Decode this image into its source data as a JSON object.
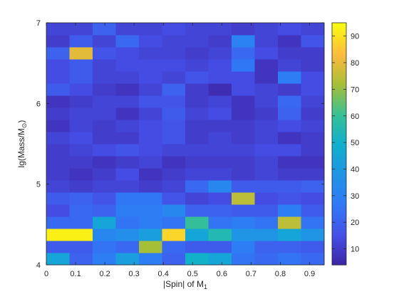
{
  "chart_data": {
    "type": "heatmap",
    "title": "",
    "xlabel": "|Spin| of M",
    "xlabel_sub": "1",
    "ylabel_prefix": "lg(Mass/M",
    "ylabel_sub": "⊙",
    "ylabel_suffix": ")",
    "xlim": [
      0,
      0.95
    ],
    "ylim": [
      4,
      7
    ],
    "x_ticks": [
      0,
      0.1,
      0.2,
      0.3,
      0.4,
      0.5,
      0.6,
      0.7,
      0.8,
      0.9
    ],
    "x_tick_labels": [
      "0",
      "0.1",
      "0.2",
      "0.3",
      "0.4",
      "0.5",
      "0.6",
      "0.7",
      "0.8",
      "0.9"
    ],
    "y_ticks": [
      4,
      5,
      6,
      7
    ],
    "y_tick_labels": [
      "4",
      "5",
      "6",
      "7"
    ],
    "x_edges": [
      0,
      0.0792,
      0.1583,
      0.2375,
      0.3167,
      0.3958,
      0.475,
      0.5542,
      0.6333,
      0.7125,
      0.7917,
      0.8708,
      0.95
    ],
    "y_edges": [
      4,
      4.15,
      4.3,
      4.45,
      4.6,
      4.75,
      4.9,
      5.05,
      5.2,
      5.35,
      5.5,
      5.65,
      5.8,
      5.95,
      6.1,
      6.25,
      6.4,
      6.55,
      6.7,
      6.85,
      7.0
    ],
    "values": [
      [
        45,
        20,
        28,
        42,
        28,
        20,
        50,
        45,
        25,
        22,
        25,
        22
      ],
      [
        18,
        18,
        25,
        22,
        72,
        22,
        18,
        18,
        28,
        20,
        20,
        18
      ],
      [
        93,
        93,
        32,
        35,
        42,
        88,
        45,
        55,
        38,
        38,
        45,
        38
      ],
      [
        22,
        22,
        45,
        25,
        28,
        25,
        60,
        25,
        28,
        25,
        75,
        25
      ],
      [
        14,
        22,
        20,
        28,
        28,
        32,
        20,
        20,
        18,
        18,
        28,
        18
      ],
      [
        18,
        20,
        16,
        26,
        26,
        16,
        12,
        14,
        75,
        14,
        16,
        14
      ],
      [
        12,
        10,
        12,
        12,
        10,
        12,
        22,
        32,
        18,
        18,
        18,
        20
      ],
      [
        10,
        8,
        10,
        14,
        8,
        10,
        12,
        12,
        10,
        12,
        10,
        10
      ],
      [
        10,
        10,
        8,
        10,
        12,
        8,
        10,
        10,
        10,
        12,
        8,
        8
      ],
      [
        10,
        12,
        14,
        16,
        14,
        12,
        12,
        12,
        12,
        14,
        14,
        10
      ],
      [
        12,
        14,
        10,
        10,
        14,
        16,
        10,
        12,
        10,
        12,
        8,
        10
      ],
      [
        8,
        12,
        10,
        12,
        14,
        16,
        10,
        10,
        10,
        12,
        14,
        12
      ],
      [
        10,
        12,
        12,
        8,
        12,
        18,
        12,
        14,
        8,
        10,
        20,
        10
      ],
      [
        8,
        10,
        12,
        12,
        16,
        16,
        10,
        12,
        8,
        12,
        22,
        12
      ],
      [
        18,
        14,
        10,
        8,
        12,
        20,
        10,
        6,
        14,
        12,
        10,
        14
      ],
      [
        14,
        18,
        12,
        12,
        14,
        12,
        16,
        14,
        14,
        8,
        28,
        14
      ],
      [
        14,
        18,
        12,
        14,
        14,
        14,
        12,
        14,
        26,
        8,
        12,
        10
      ],
      [
        20,
        80,
        16,
        14,
        12,
        12,
        10,
        12,
        22,
        14,
        10,
        10
      ],
      [
        10,
        18,
        12,
        22,
        14,
        12,
        12,
        10,
        30,
        12,
        8,
        16
      ],
      [
        12,
        12,
        20,
        12,
        12,
        14,
        12,
        12,
        10,
        12,
        14,
        12
      ]
    ],
    "colorbar": {
      "min": 4,
      "max": 95,
      "ticks": [
        10,
        20,
        30,
        40,
        50,
        60,
        70,
        80,
        90
      ],
      "tick_labels": [
        "10",
        "20",
        "30",
        "40",
        "50",
        "60",
        "70",
        "80",
        "90"
      ]
    },
    "colormap": "parula",
    "grid": false
  }
}
